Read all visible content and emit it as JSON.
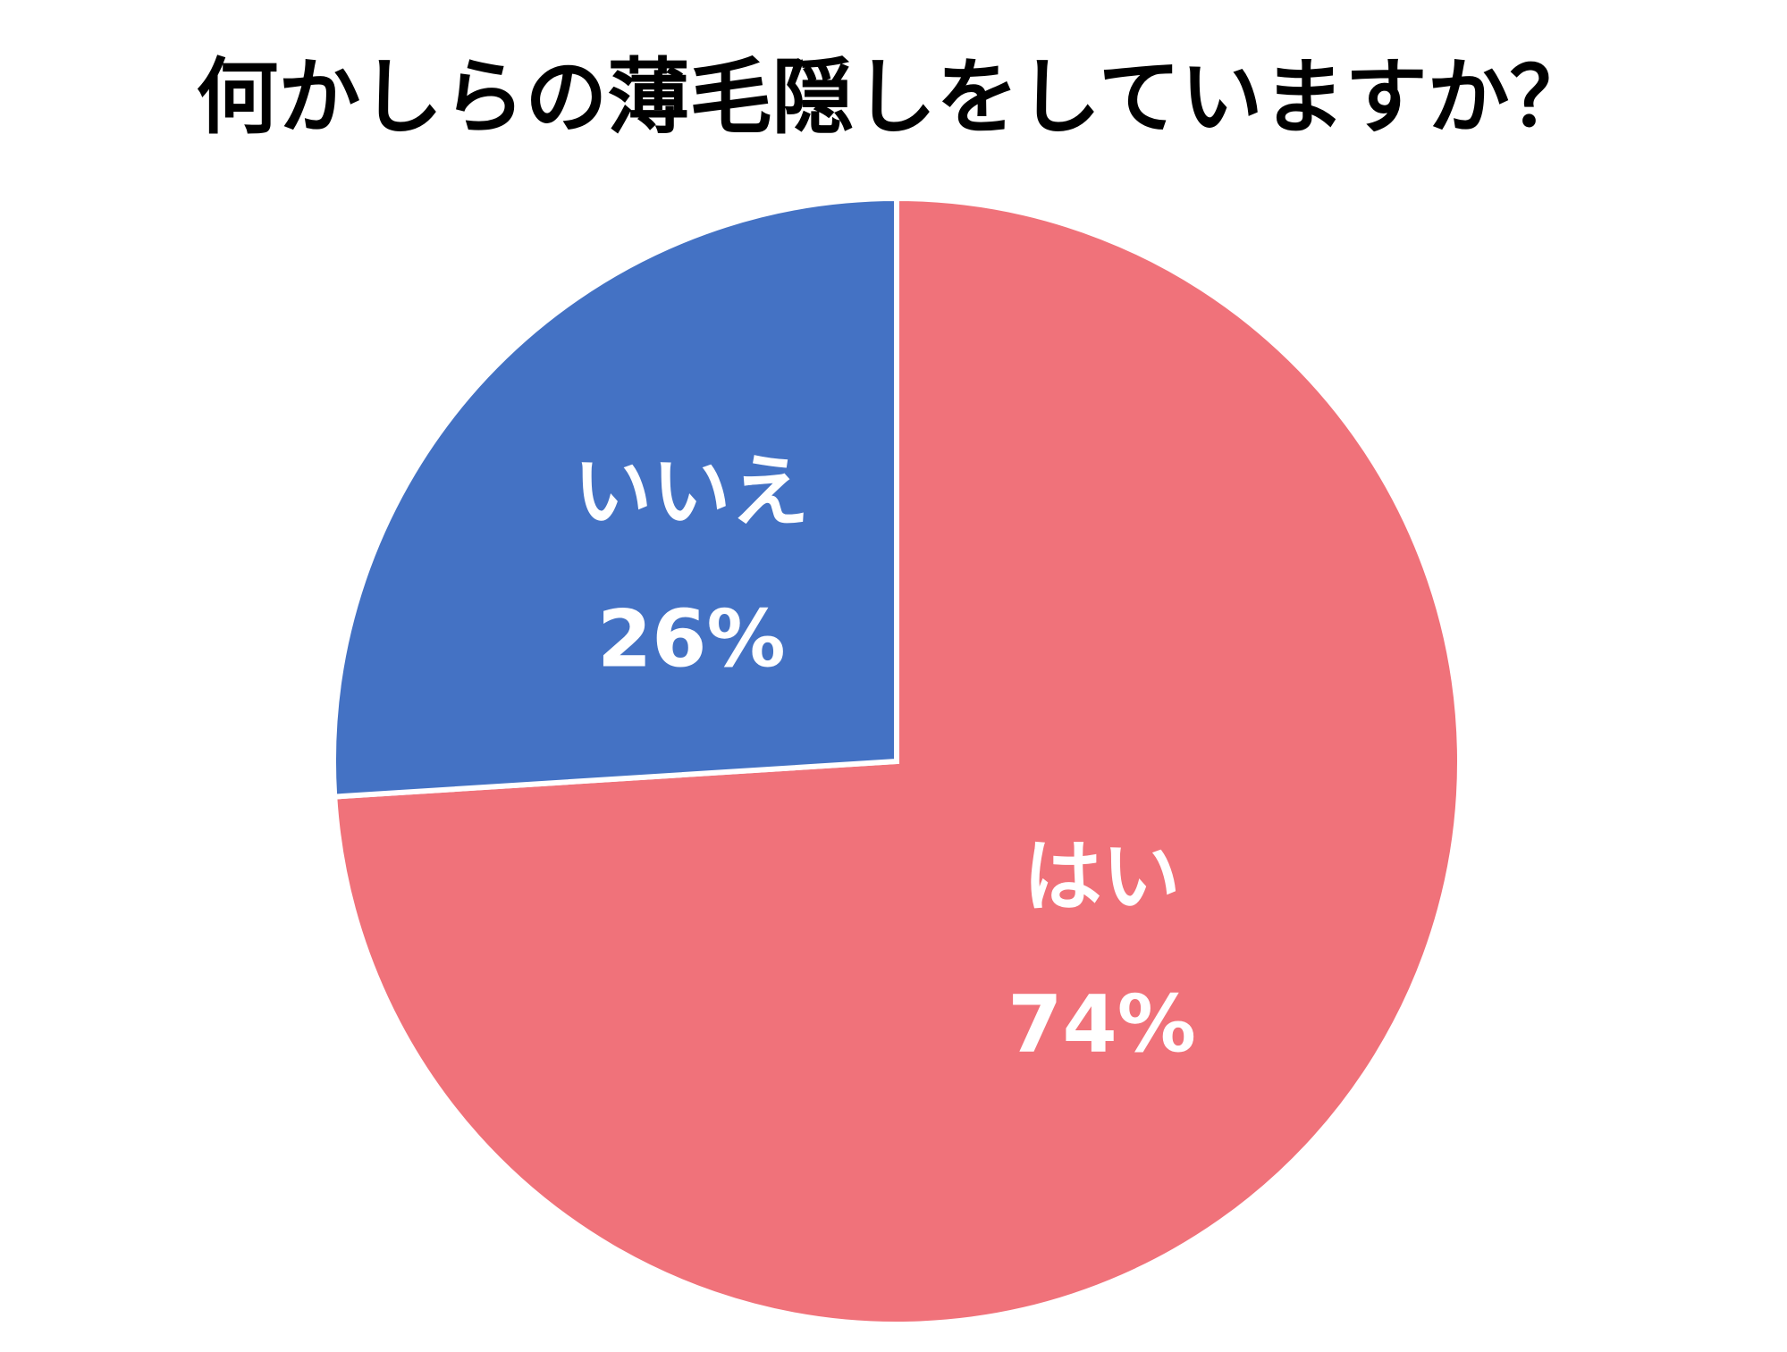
{
  "chart_data": {
    "type": "pie",
    "title": "何かしらの薄毛隠しをしていますか？",
    "categories": [
      "はい",
      "いいえ"
    ],
    "values": [
      74,
      26
    ],
    "value_labels": [
      "74%",
      "26%"
    ],
    "colors": [
      "#f0727a",
      "#4472c4"
    ]
  }
}
